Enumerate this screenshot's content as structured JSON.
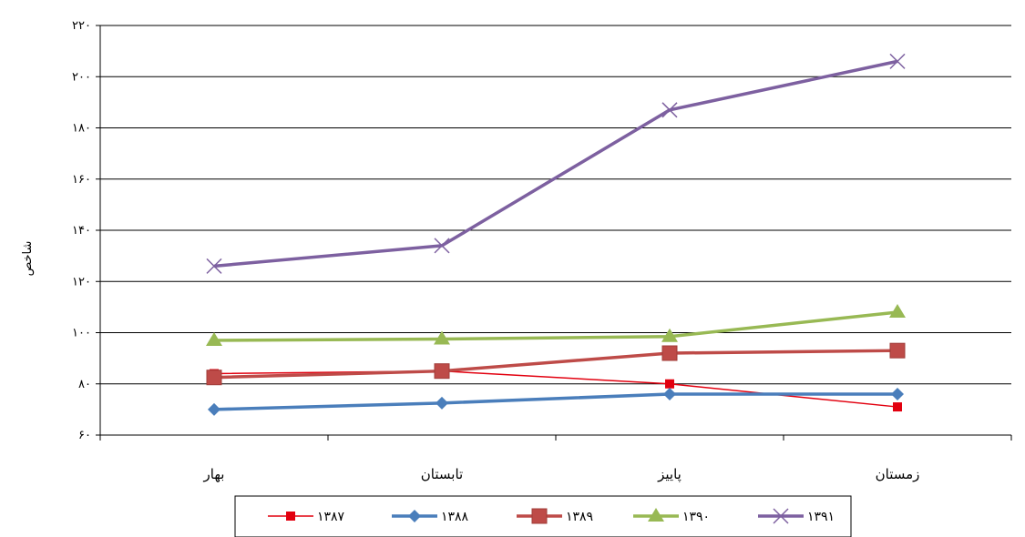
{
  "chart_data": {
    "type": "line",
    "title": "",
    "xlabel": "",
    "ylabel": "شاخص",
    "categories": [
      "بهار",
      "تابستان",
      "پاییز",
      "زمستان"
    ],
    "y_tick_labels": [
      "۶۰",
      "۸۰",
      "۱۰۰",
      "۱۲۰",
      "۱۴۰",
      "۱۶۰",
      "۱۸۰",
      "۲۰۰",
      "۲۲۰"
    ],
    "ylim": [
      60,
      220
    ],
    "y_step": 20,
    "grid": "horizontal",
    "legend_position": "bottom",
    "series": [
      {
        "name": "۱۳۸۷",
        "values": [
          84,
          85,
          80,
          71
        ],
        "color": "#e2000f",
        "marker": "square-small"
      },
      {
        "name": "۱۳۸۸",
        "values": [
          70,
          72.5,
          76,
          76
        ],
        "color": "#4a7ebb",
        "marker": "diamond"
      },
      {
        "name": "۱۳۸۹",
        "values": [
          82.5,
          85,
          92,
          93
        ],
        "color": "#be4b48",
        "marker": "square-large"
      },
      {
        "name": "۱۳۹۰",
        "values": [
          97,
          97.5,
          98.5,
          108
        ],
        "color": "#98b954",
        "marker": "triangle"
      },
      {
        "name": "۱۳۹۱",
        "values": [
          126,
          134,
          187,
          206
        ],
        "color": "#7d60a0",
        "marker": "x"
      }
    ]
  }
}
